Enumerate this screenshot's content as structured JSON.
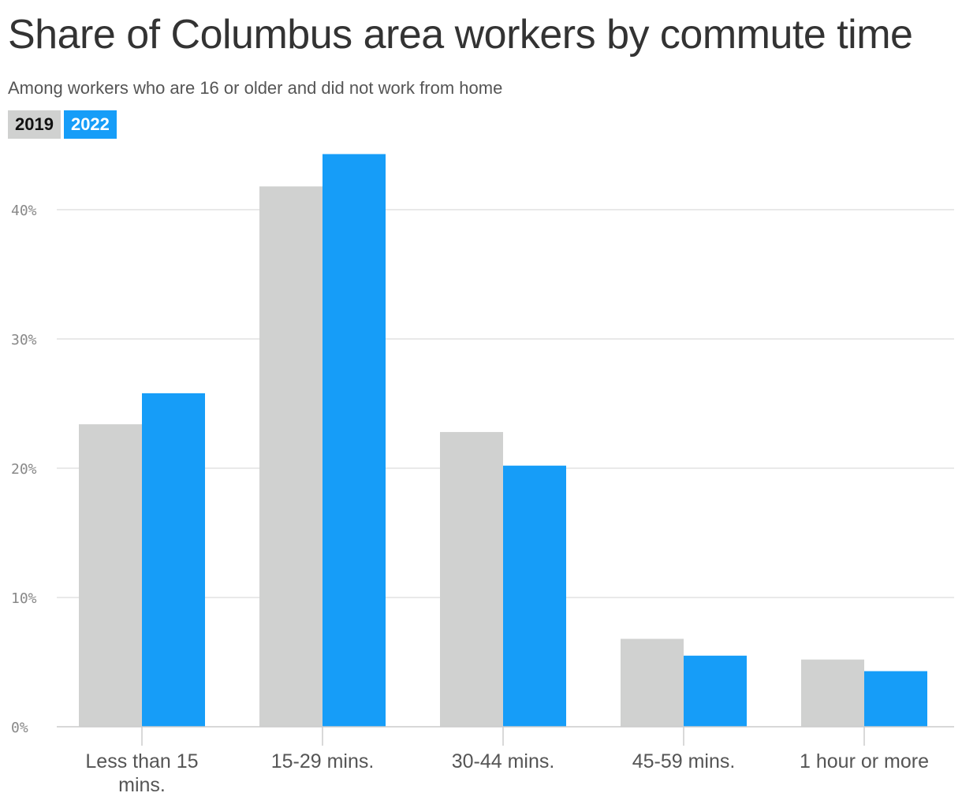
{
  "title": "Share of Columbus area workers by commute time",
  "subtitle": "Among workers who are 16 or older and did not work from home",
  "colors": {
    "2019": "#d0d1d0",
    "2022": "#169df8",
    "grid": "#e2e2e2",
    "axis": "#cccccc"
  },
  "chart_data": {
    "type": "bar",
    "categories": [
      "Less than 15 mins.",
      "15-29 mins.",
      "30-44 mins.",
      "45-59 mins.",
      "1 hour or more"
    ],
    "series": [
      {
        "name": "2019",
        "values": [
          23.4,
          41.8,
          22.8,
          6.8,
          5.2
        ]
      },
      {
        "name": "2022",
        "values": [
          25.8,
          44.3,
          20.2,
          5.5,
          4.3
        ]
      }
    ],
    "yticks": [
      "0%",
      "10%",
      "20%",
      "30%",
      "40%"
    ],
    "ytick_values": [
      0,
      10,
      20,
      30,
      40
    ],
    "ylim": [
      0,
      45
    ],
    "grid": true,
    "legend_position": "top-left"
  }
}
